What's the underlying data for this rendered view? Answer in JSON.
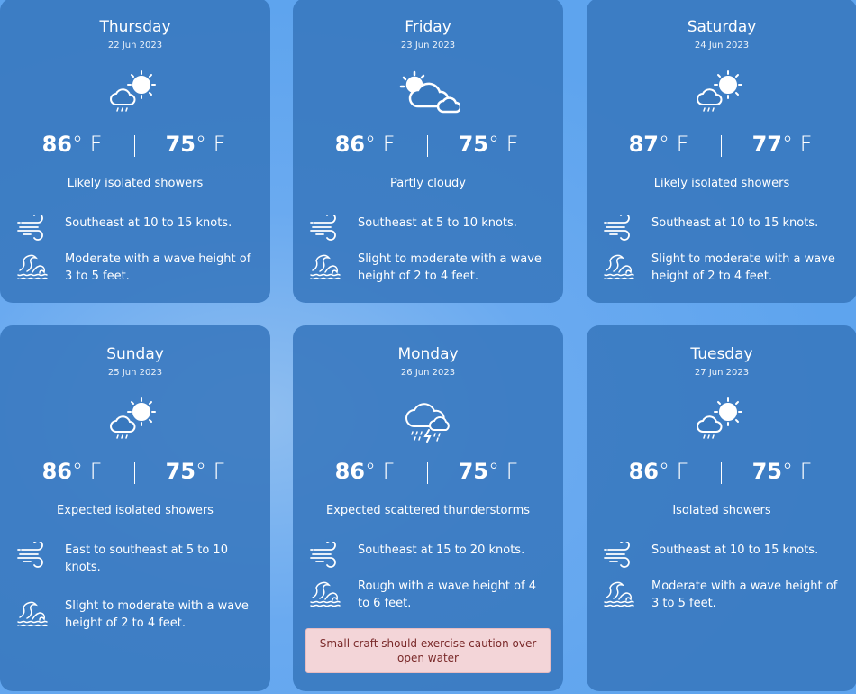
{
  "days": [
    {
      "day": "Thursday",
      "date": "22 Jun 2023",
      "icon": "sun-cloud-rain-icon",
      "high": "86",
      "low": "75",
      "unit": "° F",
      "description": "Likely isolated showers",
      "wind": "Southeast at 10 to 15 knots.",
      "waves": "Moderate with a wave height of 3 to 5 feet."
    },
    {
      "day": "Friday",
      "date": "23 Jun 2023",
      "icon": "partly-cloudy-icon",
      "high": "86",
      "low": "75",
      "unit": "° F",
      "description": "Partly cloudy",
      "wind": "Southeast at 5 to 10 knots.",
      "waves": "Slight to moderate with a wave height of 2 to 4 feet."
    },
    {
      "day": "Saturday",
      "date": "24 Jun 2023",
      "icon": "sun-cloud-rain-icon",
      "high": "87",
      "low": "77",
      "unit": "° F",
      "description": "Likely isolated showers",
      "wind": "Southeast at 10 to 15 knots.",
      "waves": "Slight to moderate with a wave height of 2 to 4 feet."
    },
    {
      "day": "Sunday",
      "date": "25 Jun 2023",
      "icon": "sun-cloud-rain-icon",
      "high": "86",
      "low": "75",
      "unit": "° F",
      "description": "Expected isolated showers",
      "wind": "East to southeast at 5 to 10 knots.",
      "waves": "Slight to moderate with a wave height of 2 to 4 feet."
    },
    {
      "day": "Monday",
      "date": "26 Jun 2023",
      "icon": "thunderstorm-icon",
      "high": "86",
      "low": "75",
      "unit": "° F",
      "description": "Expected scattered thunderstorms",
      "wind": "Southeast at 15 to 20 knots.",
      "waves": "Rough with a wave height of 4 to 6 feet.",
      "alert": "Small craft should exercise caution over open water"
    },
    {
      "day": "Tuesday",
      "date": "27 Jun 2023",
      "icon": "sun-cloud-rain-icon",
      "high": "86",
      "low": "75",
      "unit": "° F",
      "description": "Isolated showers",
      "wind": "Southeast at 10 to 15 knots.",
      "waves": "Moderate with a wave height of 3 to 5 feet."
    }
  ]
}
